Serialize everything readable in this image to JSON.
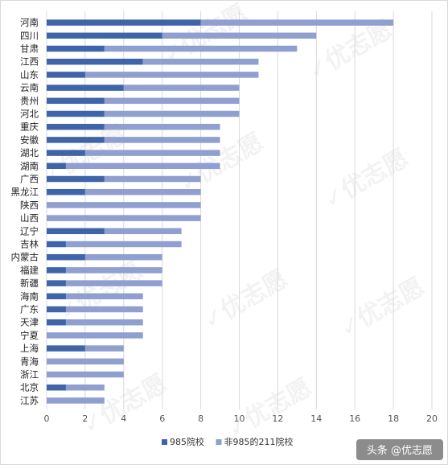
{
  "chart_data": {
    "type": "bar",
    "orientation": "horizontal",
    "stacked": true,
    "categories": [
      "河南",
      "四川",
      "甘肃",
      "江西",
      "山东",
      "云南",
      "贵州",
      "河北",
      "重庆",
      "安徽",
      "湖北",
      "湖南",
      "广西",
      "黑龙江",
      "陕西",
      "山西",
      "辽宁",
      "吉林",
      "内蒙古",
      "福建",
      "新疆",
      "海南",
      "广东",
      "天津",
      "宁夏",
      "上海",
      "青海",
      "浙江",
      "北京",
      "江苏"
    ],
    "series": [
      {
        "name": "985院校",
        "color": "#3f64a8",
        "values": [
          8,
          6,
          3,
          5,
          2,
          4,
          3,
          3,
          3,
          3,
          2,
          1,
          3,
          2,
          0,
          0,
          3,
          1,
          2,
          1,
          1,
          1,
          1,
          1,
          0,
          2,
          0,
          0,
          1,
          0
        ]
      },
      {
        "name": "非985的211院校",
        "color": "#8f9fd0",
        "values": [
          10,
          8,
          10,
          6,
          9,
          6,
          7,
          7,
          6,
          6,
          7,
          8,
          5,
          6,
          8,
          8,
          4,
          6,
          4,
          5,
          5,
          4,
          4,
          4,
          5,
          2,
          4,
          4,
          2,
          3
        ]
      }
    ],
    "xlim": [
      0,
      20
    ],
    "xticks": [
      "0",
      "2",
      "4",
      "6",
      "8",
      "10",
      "12",
      "14",
      "16",
      "18",
      "20"
    ],
    "grid": true,
    "legend_position": "bottom"
  },
  "watermark": {
    "text": "优志愿"
  },
  "credit": {
    "text": "头条 @优志愿"
  }
}
